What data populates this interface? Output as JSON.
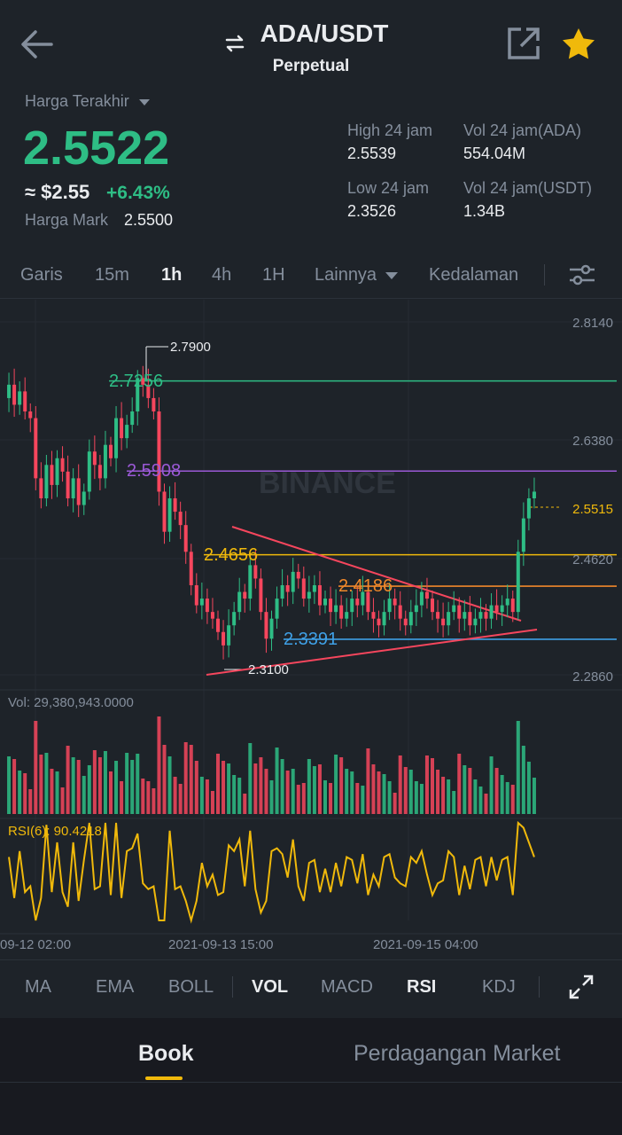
{
  "header": {
    "pair": "ADA/USDT",
    "type": "Perpetual",
    "swap_icon": "swap-arrows-icon",
    "back_icon": "back-arrow-icon",
    "share_icon": "share-external-icon",
    "favorite_icon": "star-icon"
  },
  "ticker": {
    "last_price_label": "Harga Terakhir",
    "last_price": "2.5522",
    "usd_price": "≈ $2.55",
    "change_pct": "+6.43%",
    "mark_label": "Harga Mark",
    "mark_price": "2.5500",
    "high_label": "High 24 jam",
    "high_value": "2.5539",
    "low_label": "Low 24 jam",
    "low_value": "2.3526",
    "vol_ada_label": "Vol 24 jam(ADA)",
    "vol_ada_value": "554.04M",
    "vol_usdt_label": "Vol 24 jam(USDT)",
    "vol_usdt_value": "1.34B"
  },
  "intervals": {
    "items": [
      "Garis",
      "15m",
      "1h",
      "4h",
      "1H",
      "Lainnya",
      "Kedalaman"
    ],
    "active": "1h"
  },
  "chart": {
    "watermark": "BINANCE",
    "axis_labels": [
      "2.8140",
      "2.6380",
      "2.4620",
      "2.2860"
    ],
    "current_price_tag": "2.5515",
    "high_marker": "2.7900",
    "low_marker": "2.3100",
    "levels": [
      {
        "value": "2.7256",
        "color": "#2ebd85"
      },
      {
        "value": "2.5908",
        "color": "#9b59d6"
      },
      {
        "value": "2.4656",
        "color": "#f0b90b"
      },
      {
        "value": "2.4186",
        "color": "#f0882a"
      },
      {
        "value": "2.3391",
        "color": "#3fa0e6"
      }
    ],
    "vol_label": "Vol: 29,380,943.0000",
    "rsi_label": "RSI(6): 90.4218",
    "time_labels": [
      "09-12 02:00",
      "2021-09-13 15:00",
      "2021-09-15 04:00"
    ],
    "colors": {
      "up": "#2ebd85",
      "down": "#f6465d",
      "rsi": "#f0b90b",
      "trend": "#f6465d"
    }
  },
  "indicators": {
    "items": [
      "MA",
      "EMA",
      "BOLL",
      "VOL",
      "MACD",
      "RSI",
      "KDJ"
    ],
    "active": [
      "VOL",
      "RSI"
    ]
  },
  "bottom_tabs": {
    "book": "Book",
    "market": "Perdagangan Market"
  },
  "colors": {
    "accent": "#f0b90b",
    "bg": "#1e2329"
  }
}
